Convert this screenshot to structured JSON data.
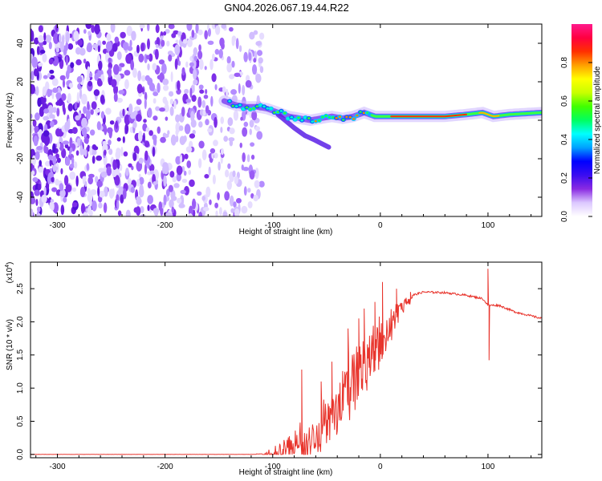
{
  "title": "GN04.2026.067.19.44.R22",
  "chart_data": [
    {
      "type": "heatmap",
      "name": "spectrogram",
      "xlabel": "Height of straight line (km)",
      "ylabel": "Frequency (Hz)",
      "xlim": [
        -325,
        150
      ],
      "ylim": [
        -50,
        50
      ],
      "xticks": [
        -300,
        -200,
        -100,
        0,
        100
      ],
      "yticks": [
        -40,
        -20,
        0,
        20,
        40
      ],
      "colorbar": {
        "label": "Normalized spectral amplitude",
        "range": [
          0,
          1
        ],
        "ticks": [
          "0.0",
          "0.2",
          "0.4",
          "0.6",
          "0.8"
        ],
        "colors": [
          "#ffffff",
          "#dcc8ff",
          "#8a2be2",
          "#3a0cf0",
          "#0000ff",
          "#00a0ff",
          "#00ffff",
          "#00ff60",
          "#40ff00",
          "#c8ff00",
          "#ffff00",
          "#ffa000",
          "#ff3000",
          "#ff0040",
          "#ff1a8c"
        ]
      },
      "ridge": [
        [
          -145,
          10
        ],
        [
          -135,
          8
        ],
        [
          -125,
          7
        ],
        [
          -115,
          7
        ],
        [
          -105,
          6
        ],
        [
          -95,
          4
        ],
        [
          -85,
          2
        ],
        [
          -75,
          1
        ],
        [
          -65,
          0
        ],
        [
          -55,
          1
        ],
        [
          -45,
          2
        ],
        [
          -35,
          1
        ],
        [
          -25,
          2
        ],
        [
          -15,
          4
        ],
        [
          -5,
          2
        ],
        [
          0,
          2
        ],
        [
          20,
          2
        ],
        [
          40,
          2
        ],
        [
          60,
          2
        ],
        [
          80,
          3
        ],
        [
          95,
          4
        ],
        [
          105,
          2
        ],
        [
          120,
          3
        ],
        [
          150,
          4
        ]
      ],
      "lower_branch": [
        [
          -95,
          3
        ],
        [
          -80,
          -4
        ],
        [
          -70,
          -8
        ],
        [
          -62,
          -10
        ],
        [
          -55,
          -12
        ],
        [
          -48,
          -14
        ]
      ],
      "noise_region_x": [
        -325,
        -110
      ]
    },
    {
      "type": "line",
      "name": "snr",
      "xlabel": "Height of straight line (km)",
      "ylabel": "SNR (10 * v/v)",
      "multiplier": "(x10",
      "multiplier_exp": "4",
      "multiplier_close": ")",
      "xlim": [
        -325,
        150
      ],
      "ylim": [
        -0.05,
        2.9
      ],
      "xticks": [
        -300,
        -200,
        -100,
        0,
        100
      ],
      "yticks": [
        0.0,
        0.5,
        1.0,
        1.5,
        2.0,
        2.5
      ],
      "color": "#e8342c",
      "envelope": [
        [
          -325,
          0.0
        ],
        [
          -120,
          0.0
        ],
        [
          -100,
          0.02
        ],
        [
          -90,
          0.15
        ],
        [
          -80,
          0.3
        ],
        [
          -75,
          0.45
        ],
        [
          -70,
          0.35
        ],
        [
          -60,
          0.55
        ],
        [
          -50,
          0.8
        ],
        [
          -45,
          1.0
        ],
        [
          -40,
          1.1
        ],
        [
          -30,
          1.3
        ],
        [
          -20,
          1.6
        ],
        [
          -10,
          1.8
        ],
        [
          0,
          1.95
        ],
        [
          10,
          2.1
        ],
        [
          20,
          2.3
        ],
        [
          30,
          2.4
        ],
        [
          40,
          2.45
        ],
        [
          60,
          2.44
        ],
        [
          80,
          2.4
        ],
        [
          95,
          2.35
        ],
        [
          100,
          2.25
        ],
        [
          110,
          2.25
        ],
        [
          125,
          2.15
        ],
        [
          150,
          2.05
        ]
      ],
      "spikes": [
        [
          -73,
          1.28
        ],
        [
          -55,
          1.1
        ],
        [
          -45,
          1.4
        ],
        [
          -30,
          1.9
        ],
        [
          -20,
          2.05
        ],
        [
          -15,
          2.2
        ],
        [
          -5,
          2.3
        ],
        [
          2,
          2.6
        ],
        [
          15,
          2.5
        ],
        [
          28,
          2.45
        ],
        [
          100,
          2.8
        ],
        [
          101,
          1.42
        ]
      ]
    }
  ]
}
